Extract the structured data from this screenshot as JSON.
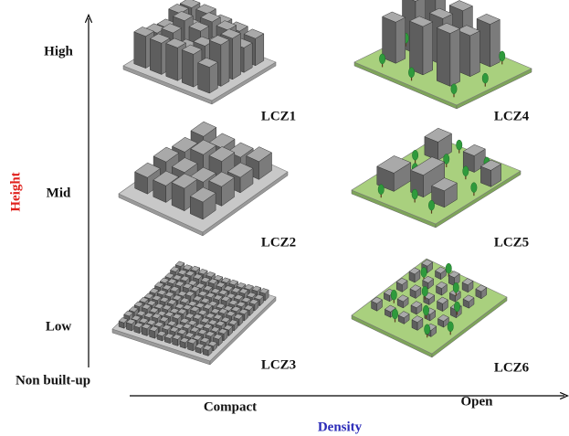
{
  "axes": {
    "y_title": "Height",
    "x_title": "Density",
    "y_levels": [
      "High",
      "Mid",
      "Low",
      "Non built-up"
    ],
    "x_levels": [
      "Compact",
      "Open"
    ]
  },
  "zones": [
    "LCZ1",
    "LCZ4",
    "LCZ2",
    "LCZ5",
    "LCZ3",
    "LCZ6"
  ]
}
